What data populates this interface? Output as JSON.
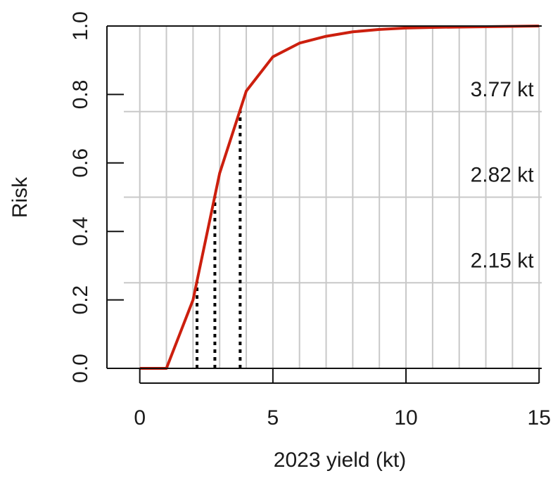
{
  "chart_data": {
    "type": "line",
    "title": "",
    "xlabel": "2023 yield (kt)",
    "ylabel": "Risk",
    "xlim": [
      -0.6,
      15.1
    ],
    "ylim": [
      0.0,
      1.0
    ],
    "x_ticks": [
      0,
      5,
      10,
      15
    ],
    "x_tick_labels": [
      "0",
      "5",
      "10",
      "15"
    ],
    "y_ticks": [
      0.0,
      0.2,
      0.4,
      0.6,
      0.8,
      1.0
    ],
    "y_tick_labels": [
      "0.0",
      "0.2",
      "0.4",
      "0.6",
      "0.8",
      "1.0"
    ],
    "grid": true,
    "x_grid": [
      0,
      1,
      2,
      3,
      4,
      5,
      6,
      7,
      8,
      9,
      10,
      11,
      12,
      13,
      14,
      15
    ],
    "y_grid": [
      0.25,
      0.5,
      0.75
    ],
    "colors": {
      "line": "#cc1f0e",
      "grid": "#c8c8c8",
      "reference": "#000000"
    },
    "series": [
      {
        "x": [
          0,
          1,
          2,
          3,
          4,
          5,
          6,
          7,
          8,
          9,
          10,
          11,
          12,
          13,
          14,
          15
        ],
        "y": [
          0.0,
          0.0,
          0.2,
          0.57,
          0.81,
          0.91,
          0.95,
          0.97,
          0.983,
          0.99,
          0.994,
          0.996,
          0.997,
          0.998,
          0.999,
          1.0
        ]
      }
    ],
    "reference_lines": [
      {
        "x": 2.15,
        "y": 0.25
      },
      {
        "x": 2.82,
        "y": 0.5
      },
      {
        "x": 3.77,
        "y": 0.75
      }
    ],
    "annotations": [
      {
        "text": "3.77 kt",
        "x": 14.8,
        "y": 0.795
      },
      {
        "text": "2.82 kt",
        "x": 14.8,
        "y": 0.545
      },
      {
        "text": "2.15 kt",
        "x": 14.8,
        "y": 0.295
      }
    ]
  }
}
